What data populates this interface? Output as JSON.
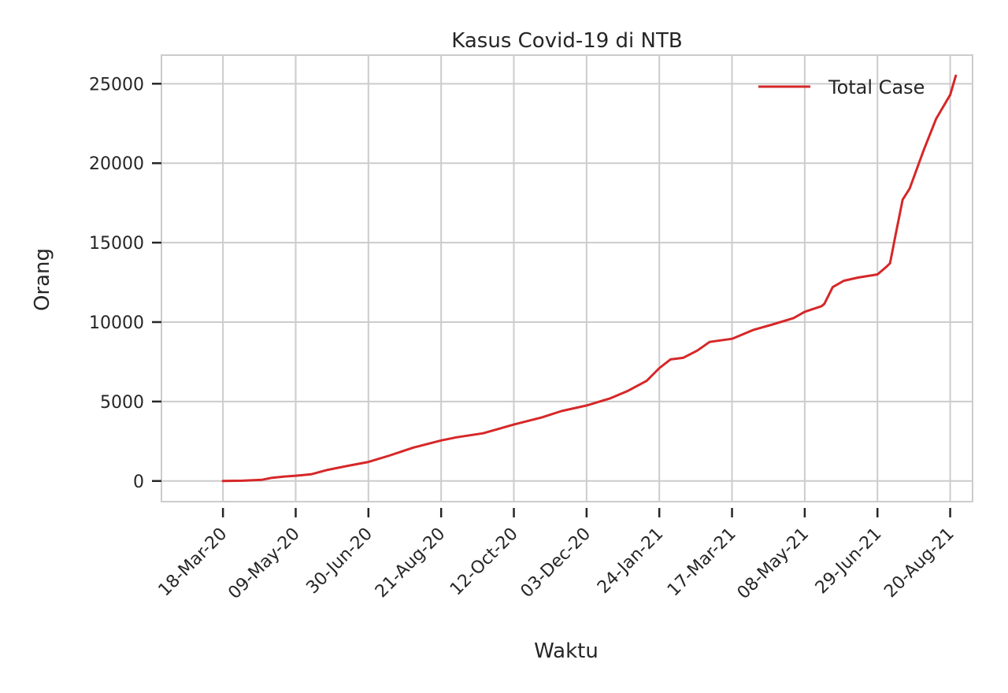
{
  "chart_data": {
    "type": "line",
    "title": "Kasus Covid-19 di NTB",
    "xlabel": "Waktu",
    "ylabel": "Orang",
    "x_ticks": [
      "18-Mar-20",
      "09-May-20",
      "30-Jun-20",
      "21-Aug-20",
      "12-Oct-20",
      "03-Dec-20",
      "24-Jan-21",
      "17-Mar-21",
      "08-May-21",
      "29-Jun-21",
      "20-Aug-21"
    ],
    "y_ticks": [
      0,
      5000,
      10000,
      15000,
      20000,
      25000
    ],
    "ylim": [
      -1300,
      26800
    ],
    "xlim": [
      "2020-02-03",
      "2021-09-05"
    ],
    "grid": true,
    "legend_position": "top-right",
    "series": [
      {
        "name": "Total Case",
        "color": "#d62728",
        "x": [
          "2020-03-18",
          "2020-04-01",
          "2020-04-15",
          "2020-04-22",
          "2020-05-01",
          "2020-05-09",
          "2020-05-20",
          "2020-06-01",
          "2020-06-15",
          "2020-06-30",
          "2020-07-15",
          "2020-08-01",
          "2020-08-21",
          "2020-09-01",
          "2020-09-20",
          "2020-10-12",
          "2020-11-01",
          "2020-11-15",
          "2020-12-03",
          "2020-12-20",
          "2021-01-01",
          "2021-01-15",
          "2021-01-24",
          "2021-02-01",
          "2021-02-10",
          "2021-02-20",
          "2021-03-01",
          "2021-03-17",
          "2021-04-01",
          "2021-04-15",
          "2021-04-30",
          "2021-05-08",
          "2021-05-20",
          "2021-05-22",
          "2021-05-28",
          "2021-06-05",
          "2021-06-15",
          "2021-06-29",
          "2021-07-05",
          "2021-07-08",
          "2021-07-12",
          "2021-07-17",
          "2021-07-22",
          "2021-08-01",
          "2021-08-10",
          "2021-08-20",
          "2021-08-24"
        ],
        "y": [
          0,
          20,
          80,
          200,
          280,
          330,
          420,
          700,
          950,
          1200,
          1600,
          2100,
          2550,
          2750,
          3000,
          3550,
          4000,
          4400,
          4750,
          5200,
          5650,
          6300,
          7100,
          7650,
          7750,
          8200,
          8750,
          8950,
          9500,
          9850,
          10250,
          10650,
          11000,
          11150,
          12200,
          12600,
          12800,
          13000,
          13450,
          13700,
          15500,
          17700,
          18400,
          20800,
          22800,
          24300,
          25500
        ]
      }
    ]
  }
}
